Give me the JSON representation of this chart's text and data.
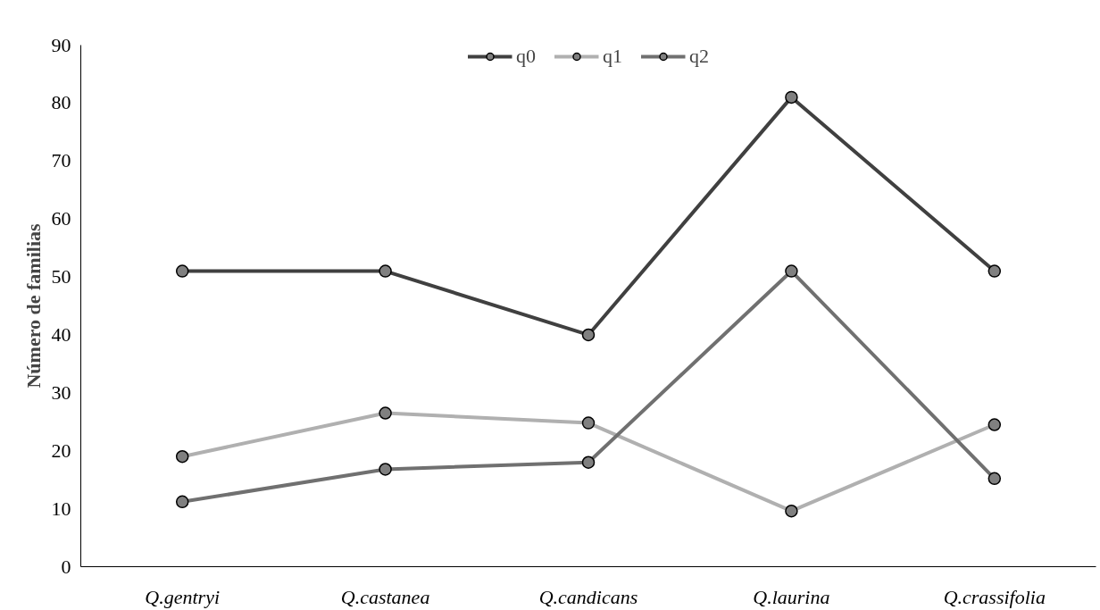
{
  "chart_data": {
    "type": "line",
    "ylabel": "Número de familias",
    "categories": [
      "Q.gentryi",
      "Q.castanea",
      "Q.candicans",
      "Q.laurina",
      "Q.crassifolia"
    ],
    "series": [
      {
        "name": "q0",
        "color": "#404040",
        "values": [
          51,
          51,
          40,
          81,
          51
        ]
      },
      {
        "name": "q1",
        "color": "#b0b0b0",
        "values": [
          19,
          26.5,
          24.8,
          9.6,
          24.5
        ]
      },
      {
        "name": "q2",
        "color": "#707070",
        "values": [
          11.2,
          16.8,
          18,
          51,
          15.2
        ]
      }
    ],
    "ylim": [
      0,
      90
    ],
    "yticks": [
      0,
      10,
      20,
      30,
      40,
      50,
      60,
      70,
      80,
      90
    ],
    "grid": false,
    "legend": "top",
    "marker": "circle",
    "line_style": "solid"
  }
}
